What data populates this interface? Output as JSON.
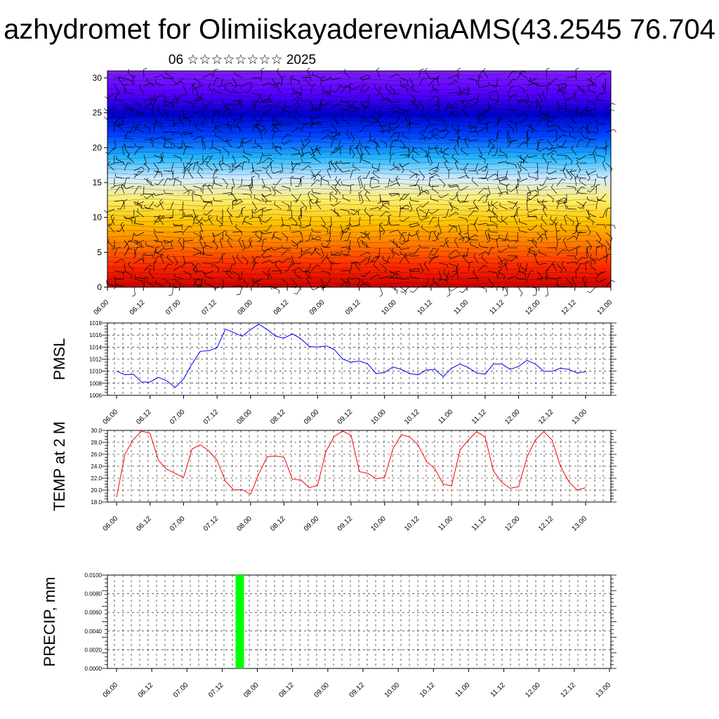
{
  "header": {
    "title": "azhydromet for OlimiiskayaderevniaAMS(43.2545 76.704",
    "subtitle": "06 ☆☆☆☆☆☆☆☆ 2025"
  },
  "colors": {
    "pmsl_line": "#0000ff",
    "temp_line": "#ff0000",
    "precip_bar": "#00ff00",
    "cross_section_stops": [
      "#cc0000",
      "#ff2a00",
      "#ff7a00",
      "#ffc400",
      "#ffee66",
      "#d8ecff",
      "#22b7ff",
      "#0044ff",
      "#0000cc",
      "#5a00ff",
      "#7f1fff"
    ]
  },
  "chart_data": [
    {
      "type": "heatmap",
      "title": "",
      "xlabel": "",
      "ylabel": "",
      "x_ticks": [
        "06.00",
        "06.12",
        "07.00",
        "07.12",
        "08.00",
        "08.12",
        "09.00",
        "09.12",
        "10.00",
        "10.12",
        "11.00",
        "11.12",
        "12.00",
        "12.12",
        "13.00"
      ],
      "y_ticks": [
        "0",
        "5",
        "10",
        "15",
        "20",
        "25",
        "30"
      ],
      "ylim": [
        0,
        31
      ],
      "overlay": "wind-barbs"
    },
    {
      "type": "line",
      "ylabel": "PMSL",
      "ylim": [
        1006,
        1018
      ],
      "y_ticks": [
        "1006",
        "1008",
        "1010",
        "1012",
        "1014",
        "1016",
        "1018"
      ],
      "x_ticks": [
        "06.00",
        "06.12",
        "07.00",
        "07.12",
        "08.00",
        "08.12",
        "09.00",
        "09.12",
        "10.00",
        "10.12",
        "11.00",
        "11.12",
        "12.00",
        "12.12",
        "13.00"
      ],
      "x_step_hours": 3,
      "values": [
        1010.0,
        1009.4,
        1009.5,
        1008.2,
        1008.2,
        1009.0,
        1008.4,
        1007.3,
        1008.7,
        1011.2,
        1013.3,
        1013.4,
        1013.9,
        1017.0,
        1016.4,
        1015.8,
        1016.9,
        1017.8,
        1016.9,
        1015.8,
        1015.5,
        1016.2,
        1015.4,
        1014.1,
        1014.0,
        1014.2,
        1013.6,
        1012.0,
        1011.5,
        1011.7,
        1011.2,
        1009.6,
        1009.8,
        1010.7,
        1010.3,
        1009.6,
        1009.4,
        1010.2,
        1010.3,
        1009.1,
        1010.5,
        1011.2,
        1010.6,
        1009.7,
        1009.5,
        1011.2,
        1011.2,
        1010.3,
        1010.8,
        1011.8,
        1011.2,
        1010.0,
        1010.0,
        1010.5,
        1010.3,
        1009.7,
        1009.9
      ]
    },
    {
      "type": "line",
      "ylabel": "TEMP at 2 M",
      "ylim": [
        18.0,
        30.0
      ],
      "y_ticks": [
        "18.0",
        "20.0",
        "22.0",
        "24.0",
        "26.0",
        "28.0",
        "30.0"
      ],
      "x_ticks": [
        "06.00",
        "06.12",
        "07.00",
        "07.12",
        "08.00",
        "08.12",
        "09.00",
        "09.12",
        "10.00",
        "10.12",
        "11.00",
        "11.12",
        "12.00",
        "12.12",
        "13.00"
      ],
      "x_step_hours": 3,
      "values": [
        18.8,
        26.0,
        28.5,
        29.9,
        29.5,
        25.0,
        23.5,
        22.8,
        22.1,
        26.9,
        27.6,
        26.6,
        25.0,
        21.5,
        20.0,
        20.1,
        19.3,
        22.8,
        25.6,
        25.7,
        25.5,
        21.8,
        21.7,
        20.4,
        20.8,
        26.5,
        29.0,
        29.9,
        29.2,
        23.1,
        22.8,
        21.9,
        22.1,
        26.9,
        29.3,
        28.9,
        27.6,
        24.8,
        23.6,
        21.0,
        20.7,
        26.7,
        28.4,
        29.8,
        28.9,
        23.2,
        21.3,
        20.3,
        20.6,
        25.5,
        28.4,
        29.8,
        28.4,
        24.0,
        21.4,
        20.0,
        20.4
      ]
    },
    {
      "type": "bar",
      "ylabel": "PRECIP, mm",
      "ylim": [
        0,
        0.01
      ],
      "y_ticks": [
        "0.0000",
        "0.0020",
        "0.0040",
        "0.0060",
        "0.0080",
        "0.0100"
      ],
      "x_ticks": [
        "06.00",
        "06.12",
        "07.00",
        "07.12",
        "08.00",
        "08.12",
        "09.00",
        "09.12",
        "10.00",
        "10.12",
        "11.00",
        "11.12",
        "12.00",
        "12.12",
        "13.00"
      ],
      "bars": [
        {
          "x_hours": 42,
          "value": 0.01
        }
      ]
    }
  ]
}
